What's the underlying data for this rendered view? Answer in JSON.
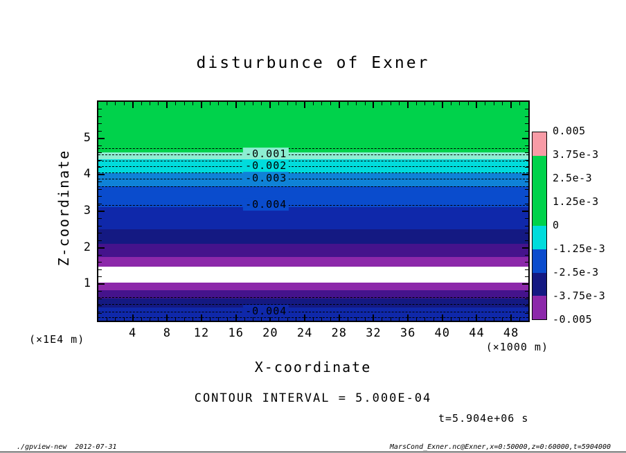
{
  "title": "disturbunce of Exner",
  "axes": {
    "x": {
      "label": "X-coordinate",
      "unit": "(×1000 m)",
      "tick_labels": [
        "4",
        "8",
        "12",
        "16",
        "20",
        "24",
        "28",
        "32",
        "36",
        "40",
        "44",
        "48"
      ],
      "tick_values": [
        4,
        8,
        12,
        16,
        20,
        24,
        28,
        32,
        36,
        40,
        44,
        48
      ],
      "minor_step": 1,
      "range": [
        0,
        50
      ]
    },
    "y": {
      "label": "Z-coordinate",
      "unit": "(×1E4 m)",
      "tick_labels": [
        "1",
        "2",
        "3",
        "4",
        "5"
      ],
      "tick_values": [
        1,
        2,
        3,
        4,
        5
      ],
      "minor_step": 0.2,
      "range": [
        0,
        6
      ]
    }
  },
  "colorbar": {
    "labels": [
      "0.005",
      "3.75e-3",
      "2.5e-3",
      "1.25e-3",
      "0",
      "-1.25e-3",
      "-2.5e-3",
      "-3.75e-3",
      "-0.005"
    ],
    "segment_colors": [
      "#f89ba6",
      "#00d24b",
      "#00d24b",
      "#00d24b",
      "#00dcdc",
      "#0a4ccd",
      "#141982",
      "#8c28aa"
    ]
  },
  "annotations": {
    "contour_interval": "CONTOUR INTERVAL = 5.000E-04",
    "time": "t=5.904e+06 s"
  },
  "footer": {
    "left": "./gpview-new  2012-07-31",
    "right": "MarsCond_Exner.nc@Exner,x=0:50000,z=0:60000,t=5904000"
  },
  "chart_data": {
    "type": "heatmap",
    "title": "disturbunce of Exner",
    "xlabel": "X-coordinate (×1000 m)",
    "ylabel": "Z-coordinate (×1E4 m)",
    "xlim": [
      0,
      50
    ],
    "ylim": [
      0,
      6
    ],
    "grid": false,
    "contour_interval": 0.0005,
    "field_description": "Horizontally uniform stratified disturbance of the Exner function: near 0 (green) aloft, decreasing downward through -0.001..-0.004, below -0.005 (white band) around z=1.0-1.5e4 m, then back to about -0.004 at the surface",
    "bands": [
      {
        "z_top": 6.0,
        "z_bottom": 4.61,
        "color": "#00d24b",
        "value_range": "0 to -0.001"
      },
      {
        "z_top": 4.61,
        "z_bottom": 4.42,
        "color": "#8deed2",
        "value_range": "-0.001 to -0.0015"
      },
      {
        "z_top": 4.42,
        "z_bottom": 4.05,
        "color": "#00dcdc",
        "value_range": "-0.0015 to -0.0025"
      },
      {
        "z_top": 4.05,
        "z_bottom": 3.68,
        "color": "#0f82d7",
        "value_range": "-0.0025 to -0.003"
      },
      {
        "z_top": 3.68,
        "z_bottom": 3.11,
        "color": "#0a4ccd",
        "value_range": "-0.003 to -0.004"
      },
      {
        "z_top": 3.11,
        "z_bottom": 2.51,
        "color": "#0f28aa",
        "value_range": "-0.004 to -0.0045"
      },
      {
        "z_top": 2.51,
        "z_bottom": 2.1,
        "color": "#141982",
        "value_range": "-0.0045 to -0.005"
      },
      {
        "z_top": 2.1,
        "z_bottom": 1.74,
        "color": "#45138c",
        "value_range": "about -0.005"
      },
      {
        "z_top": 1.74,
        "z_bottom": 1.48,
        "color": "#8c28aa",
        "value_range": "about -0.005"
      },
      {
        "z_top": 1.48,
        "z_bottom": 1.05,
        "color": "#ffffff",
        "value_range": "below -0.005"
      },
      {
        "z_top": 1.05,
        "z_bottom": 0.83,
        "color": "#8c28aa",
        "value_range": "about -0.005"
      },
      {
        "z_top": 0.83,
        "z_bottom": 0.6,
        "color": "#45138c",
        "value_range": "about -0.005"
      },
      {
        "z_top": 0.6,
        "z_bottom": 0.36,
        "color": "#141982",
        "value_range": "-0.0045 to -0.005"
      },
      {
        "z_top": 0.36,
        "z_bottom": 0.0,
        "color": "#0f28aa",
        "value_range": "-0.004 to -0.0045"
      }
    ],
    "contours": [
      {
        "z": 4.73,
        "value": -0.0005
      },
      {
        "z": 4.56,
        "value": -0.001,
        "label": "-0.001",
        "label_bg": "#8deed2"
      },
      {
        "z": 4.39,
        "value": -0.0015
      },
      {
        "z": 4.24,
        "value": -0.002,
        "label": "-0.002",
        "label_bg": "#00dcdc"
      },
      {
        "z": 4.07,
        "value": -0.0025
      },
      {
        "z": 3.9,
        "value": -0.003,
        "label": "-0.003",
        "label_bg": "#0f82d7"
      },
      {
        "z": 3.68,
        "value": -0.0035
      },
      {
        "z": 3.17,
        "value": -0.004,
        "label": "-0.004",
        "label_bg": "#0a4ccd"
      },
      {
        "z": 0.64,
        "value": -0.0045
      },
      {
        "z": 0.45,
        "value": -0.0045
      },
      {
        "z": 0.24,
        "value": -0.004,
        "label": "-0.004",
        "label_bg": "#0f28aa"
      },
      {
        "z": 0.09,
        "value": -0.0035
      }
    ],
    "label_x_fraction": 0.39
  }
}
